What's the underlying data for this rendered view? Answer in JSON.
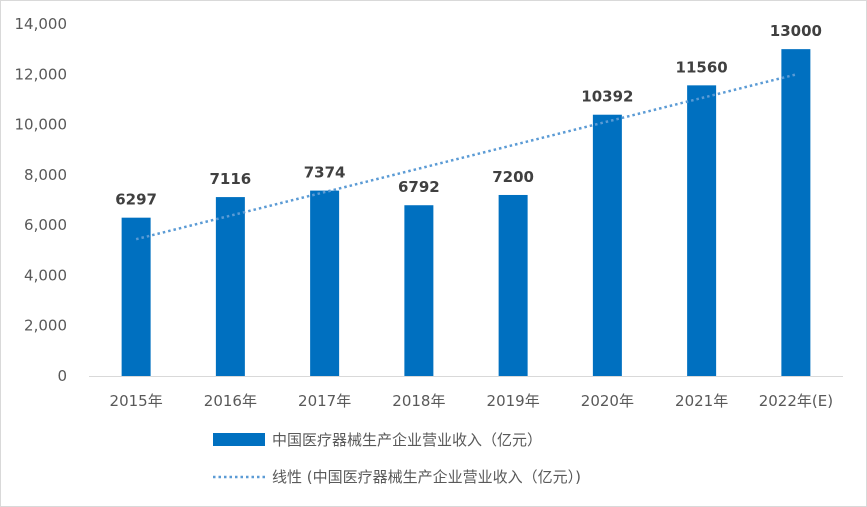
{
  "chart_data": {
    "type": "bar",
    "categories": [
      "2015年",
      "2016年",
      "2017年",
      "2018年",
      "2019年",
      "2020年",
      "2021年",
      "2022年(E)"
    ],
    "series": [
      {
        "name": "中国医疗器械生产企业营业收入（亿元）",
        "values": [
          6297,
          7116,
          7374,
          6792,
          7200,
          10392,
          11560,
          13000
        ],
        "color": "#0070C0"
      }
    ],
    "data_labels": [
      "6297",
      "7116",
      "7374",
      "6792",
      "7200",
      "10392",
      "11560",
      "13000"
    ],
    "trendline": {
      "name": "线性 (中国医疗器械生产企业营业收入（亿元）)",
      "type": "linear",
      "style": "dotted",
      "color": "#5B9BD5"
    },
    "y_ticks": [
      "0",
      "2,000",
      "4,000",
      "6,000",
      "8,000",
      "10,000",
      "12,000",
      "14,000"
    ],
    "ylim": [
      0,
      14000
    ],
    "grid": false,
    "legend_position": "bottom",
    "title": "",
    "xlabel": "",
    "ylabel": ""
  }
}
